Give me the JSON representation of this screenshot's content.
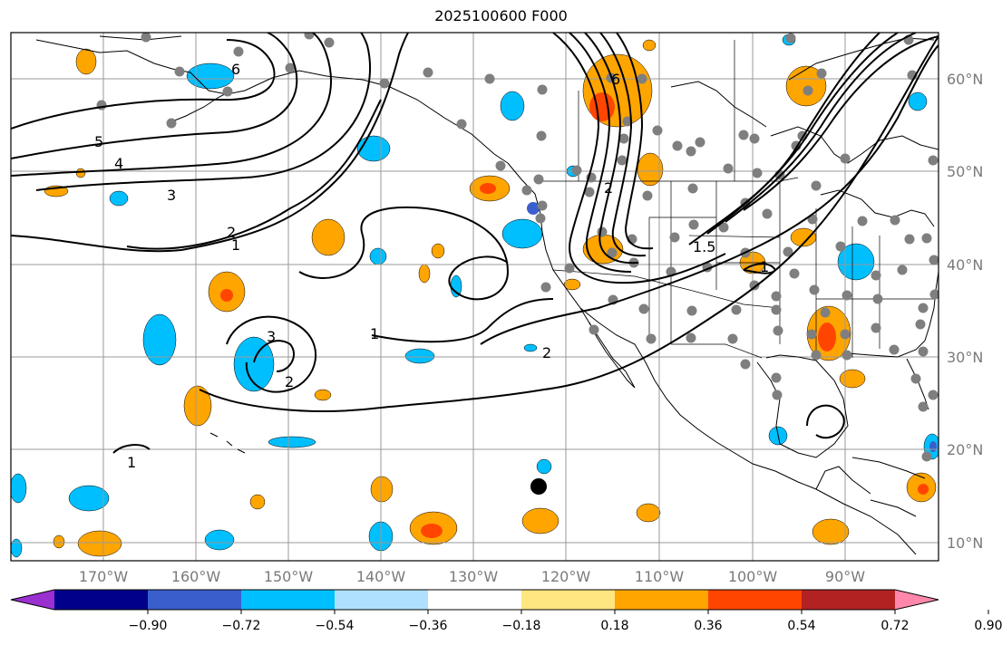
{
  "title": "2025100600 F000",
  "lat_labels": [
    "60°N",
    "50°N",
    "40°N",
    "30°N",
    "20°N",
    "10°N"
  ],
  "lon_labels": [
    "170°W",
    "160°W",
    "150°W",
    "140°W",
    "130°W",
    "120°W",
    "110°W",
    "100°W",
    "90°W"
  ],
  "contour_labels": [
    "6",
    "5",
    "4",
    "3",
    "2",
    "1",
    "6",
    "2",
    "1.5",
    "1",
    "3",
    "2",
    "1",
    "2",
    "1"
  ],
  "colorbar": {
    "colors": [
      "#9b30d0",
      "#00008b",
      "#3a5fcd",
      "#00bfff",
      "#b0e0ff",
      "#ffffff",
      "#ffe680",
      "#ffa500",
      "#ff4500",
      "#b22222",
      "#ff88aa"
    ],
    "tick_labels": [
      "−0.90",
      "−0.72",
      "−0.54",
      "−0.36",
      "−0.18",
      "0.18",
      "0.36",
      "0.54",
      "0.72",
      "0.90"
    ]
  }
}
